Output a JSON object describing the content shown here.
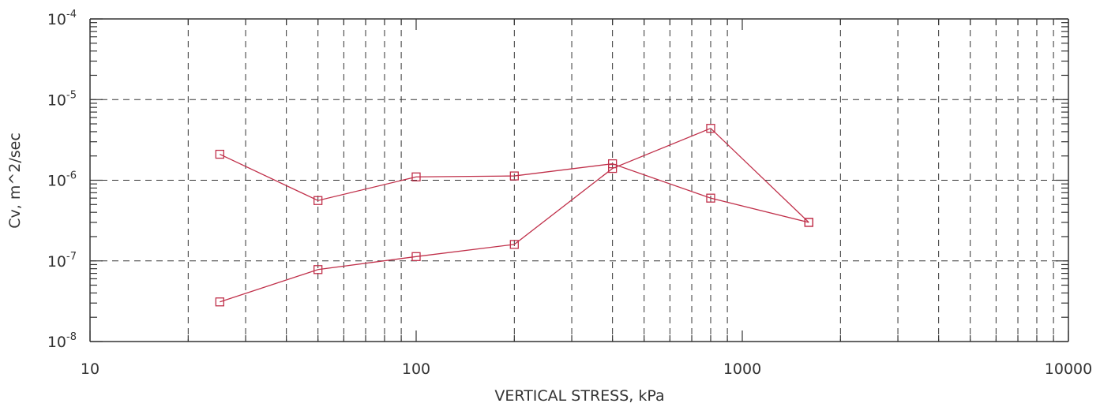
{
  "chart_data": {
    "type": "line",
    "xlabel": "VERTICAL STRESS, kPa",
    "ylabel": "Cv, m^2/sec",
    "x_scale": "log",
    "y_scale": "log",
    "xlim": [
      10,
      10000
    ],
    "ylim": [
      1e-08,
      0.0001
    ],
    "grid": true,
    "x_ticks": [
      {
        "value": 10,
        "label": "10"
      },
      {
        "value": 100,
        "label": "100"
      },
      {
        "value": 1000,
        "label": "1000"
      },
      {
        "value": 10000,
        "label": "10000"
      }
    ],
    "y_ticks": [
      {
        "value": 1e-08,
        "base": "10",
        "exp": "-8"
      },
      {
        "value": 1e-07,
        "base": "10",
        "exp": "-7"
      },
      {
        "value": 1e-06,
        "base": "10",
        "exp": "-6"
      },
      {
        "value": 1e-05,
        "base": "10",
        "exp": "-5"
      },
      {
        "value": 0.0001,
        "base": "10",
        "exp": "-4"
      }
    ],
    "series_color": "#c0304a",
    "marker": "square",
    "series": [
      {
        "x": [
          25,
          50,
          100,
          200,
          400,
          800,
          1600
        ],
        "y": [
          3.1e-08,
          7.8e-08,
          1.13e-07,
          1.6e-07,
          1.4e-06,
          4.4e-06,
          3e-07
        ]
      },
      {
        "x": [
          25,
          50,
          100,
          200,
          400,
          800,
          1600
        ],
        "y": [
          2.1e-06,
          5.6e-07,
          1.1e-06,
          1.13e-06,
          1.6e-06,
          6e-07,
          3e-07
        ]
      }
    ]
  }
}
